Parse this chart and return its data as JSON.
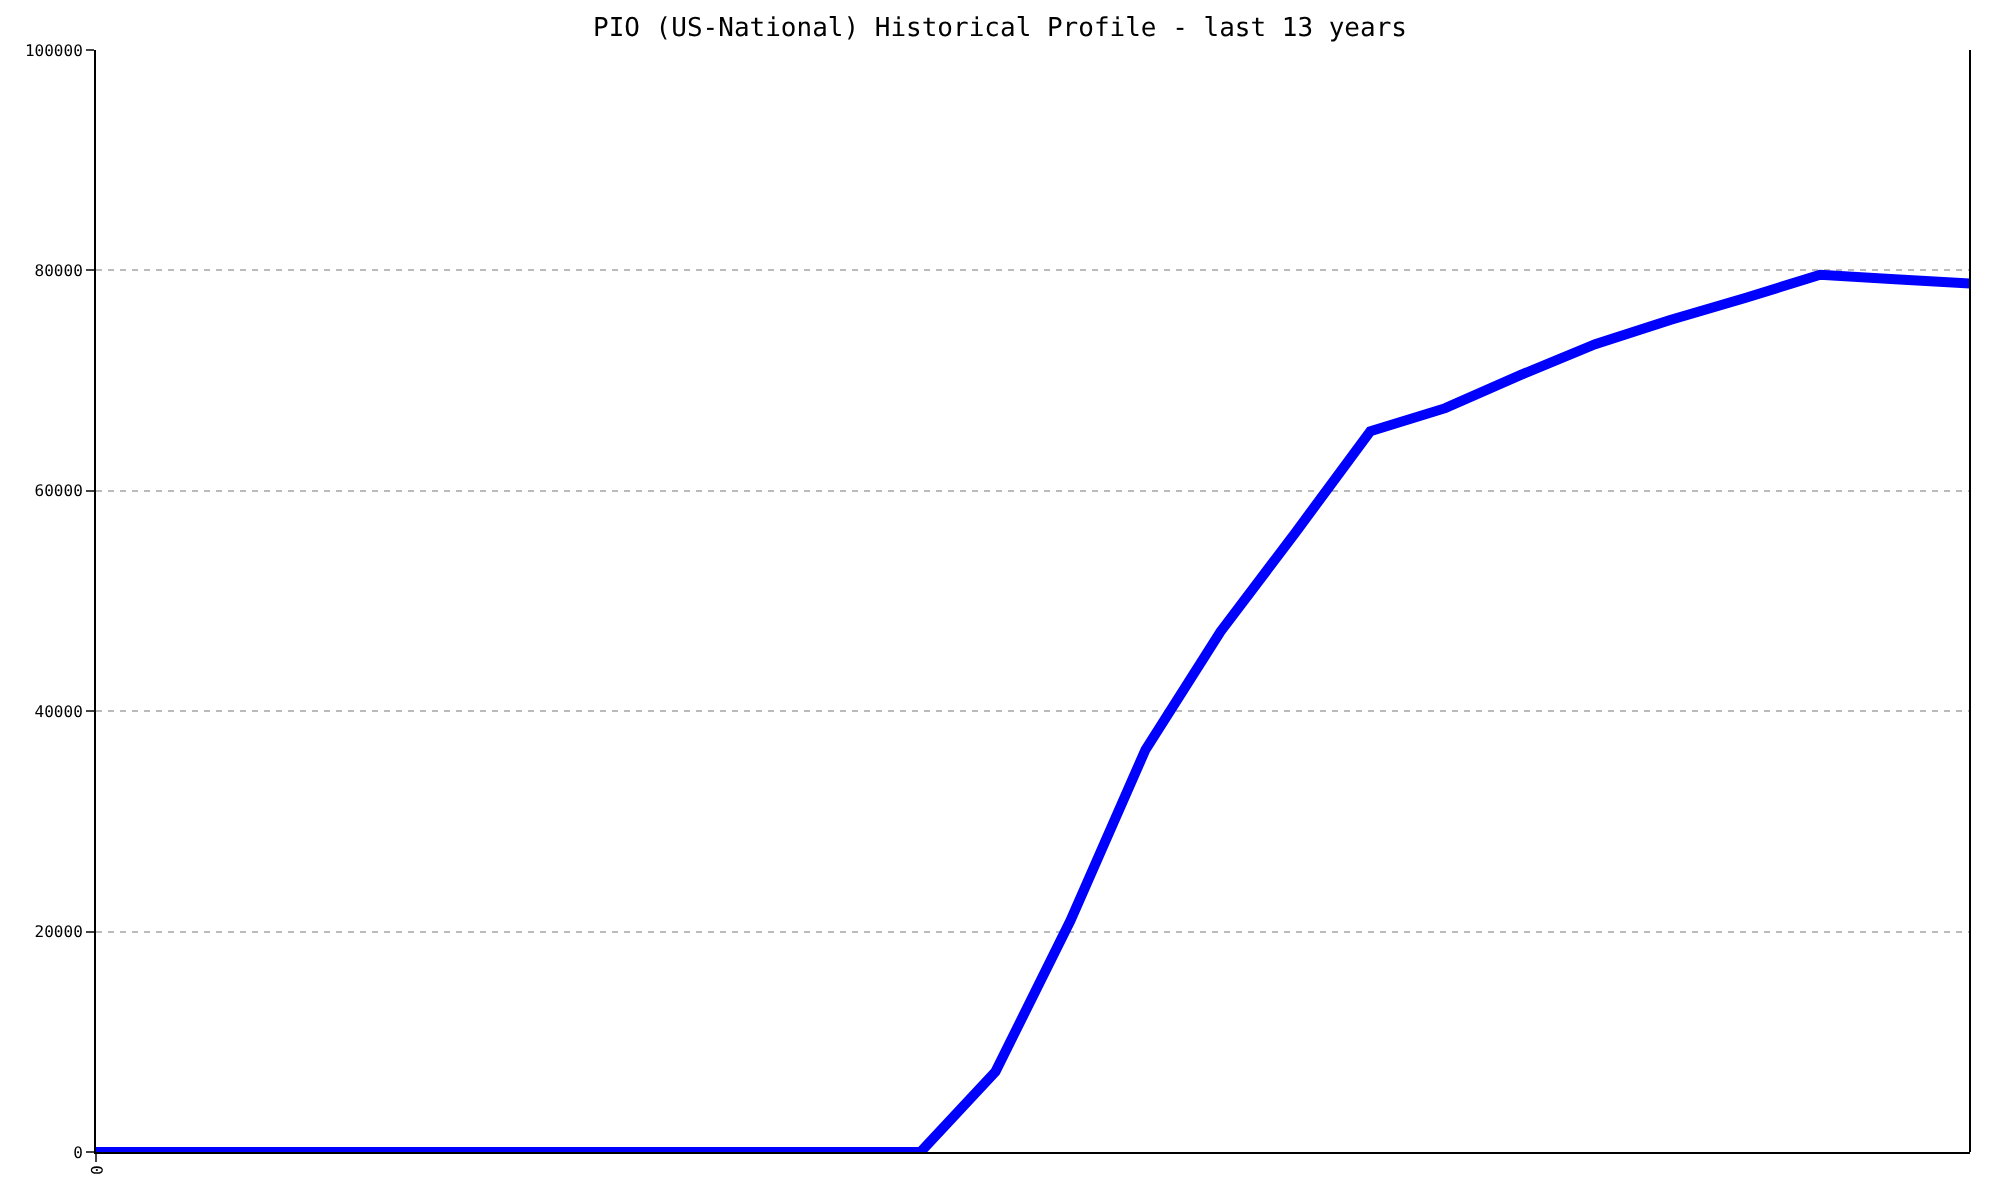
{
  "chart_data": {
    "type": "line",
    "title": "PIO (US-National) Historical Profile - last 13 years",
    "categories": [
      "0",
      null,
      null,
      null,
      null,
      null,
      null,
      null,
      null,
      null,
      null,
      null,
      null,
      null,
      null,
      null,
      null,
      null,
      null,
      null,
      null,
      null,
      null,
      null,
      null,
      null
    ],
    "series": [
      {
        "color": "#0000ff",
        "values": [
          0,
          0,
          0,
          0,
          0,
          0,
          0,
          0,
          0,
          0,
          0,
          0,
          7300,
          21000,
          36500,
          47200,
          56200,
          65400,
          67500,
          70500,
          73300,
          75500,
          77500,
          79600,
          79200,
          78800
        ]
      }
    ],
    "ylim": [
      0,
      100000
    ],
    "yticks": [
      0,
      20000,
      40000,
      60000,
      80000,
      100000
    ],
    "grid": "y",
    "marker": "none",
    "line_style": "solid"
  }
}
